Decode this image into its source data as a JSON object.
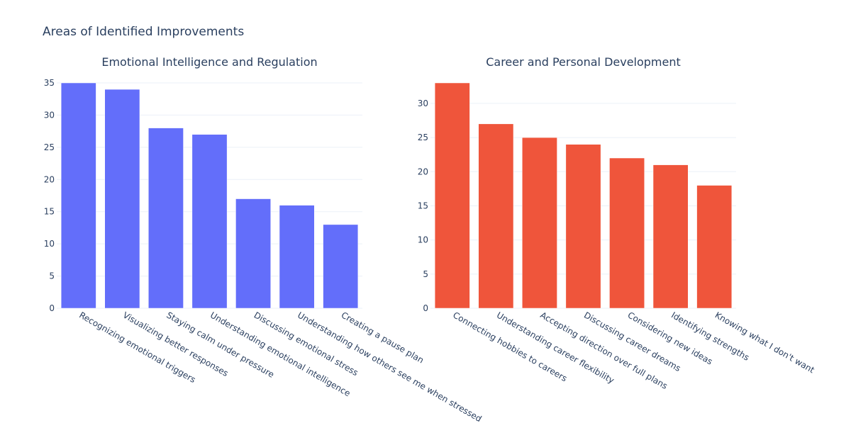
{
  "figure": {
    "title": "Areas of Identified Improvements"
  },
  "chart_data": [
    {
      "type": "bar",
      "title": "Emotional Intelligence and Regulation",
      "color": "#636efa",
      "categories": [
        "Recognizing emotional triggers",
        "Visualizing better responses",
        "Staying calm under pressure",
        "Understanding emotional intelligence",
        "Discussing emotional stress",
        "Understanding how others see me when stressed",
        "Creating a pause plan"
      ],
      "values": [
        35,
        34,
        28,
        27,
        17,
        16,
        13
      ],
      "ylim": [
        0,
        35
      ],
      "yticks": [
        0,
        5,
        10,
        15,
        20,
        25,
        30,
        35
      ],
      "grid": true
    },
    {
      "type": "bar",
      "title": "Career and Personal Development",
      "color": "#ef553b",
      "categories": [
        "Connecting hobbies to careers",
        "Understanding career flexibility",
        "Accepting direction over full plans",
        "Discussing career dreams",
        "Considering new ideas",
        "Identifying strengths",
        "Knowing what I don't want"
      ],
      "values": [
        33,
        27,
        25,
        24,
        22,
        21,
        18
      ],
      "ylim": [
        0,
        33
      ],
      "yticks": [
        0,
        5,
        10,
        15,
        20,
        25,
        30
      ],
      "grid": true
    }
  ]
}
